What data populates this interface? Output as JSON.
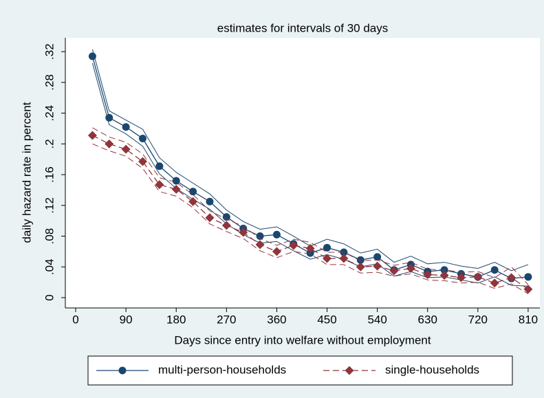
{
  "chart_data": {
    "type": "line",
    "title": "estimates for intervals of 30 days",
    "x_label": "Days since entry into welfare without employment",
    "y_label": "daily hazard rate in percent",
    "x": [
      30,
      60,
      90,
      120,
      150,
      180,
      210,
      240,
      270,
      300,
      330,
      360,
      390,
      420,
      450,
      480,
      510,
      540,
      570,
      600,
      630,
      660,
      690,
      720,
      750,
      780,
      810
    ],
    "series": [
      {
        "name": "multi-person-households",
        "color": "#1a476f",
        "marker": "circle",
        "dash": false,
        "values": [
          0.314,
          0.234,
          0.222,
          0.207,
          0.171,
          0.152,
          0.138,
          0.125,
          0.105,
          0.09,
          0.08,
          0.082,
          0.07,
          0.058,
          0.065,
          0.059,
          0.049,
          0.053,
          0.036,
          0.043,
          0.034,
          0.036,
          0.031,
          0.027,
          0.036,
          0.025,
          0.027
        ],
        "upper": [
          0.323,
          0.243,
          0.231,
          0.219,
          0.182,
          0.163,
          0.149,
          0.135,
          0.114,
          0.099,
          0.089,
          0.092,
          0.08,
          0.067,
          0.076,
          0.07,
          0.058,
          0.063,
          0.046,
          0.054,
          0.044,
          0.046,
          0.041,
          0.038,
          0.046,
          0.035,
          0.043
        ],
        "lower": [
          0.305,
          0.225,
          0.213,
          0.197,
          0.161,
          0.142,
          0.128,
          0.115,
          0.096,
          0.082,
          0.071,
          0.073,
          0.061,
          0.05,
          0.056,
          0.05,
          0.04,
          0.044,
          0.028,
          0.034,
          0.026,
          0.027,
          0.023,
          0.019,
          0.027,
          0.016,
          0.015
        ]
      },
      {
        "name": "single-households",
        "color": "#90353b",
        "marker": "diamond",
        "dash": true,
        "values": [
          0.211,
          0.2,
          0.193,
          0.177,
          0.147,
          0.141,
          0.125,
          0.104,
          0.094,
          0.085,
          0.069,
          0.06,
          0.068,
          0.064,
          0.051,
          0.051,
          0.04,
          0.041,
          0.035,
          0.038,
          0.03,
          0.029,
          0.026,
          0.027,
          0.019,
          0.026,
          0.011
        ],
        "upper": [
          0.221,
          0.209,
          0.202,
          0.187,
          0.156,
          0.15,
          0.134,
          0.113,
          0.102,
          0.093,
          0.077,
          0.068,
          0.076,
          0.072,
          0.059,
          0.059,
          0.048,
          0.049,
          0.042,
          0.046,
          0.037,
          0.036,
          0.033,
          0.034,
          0.026,
          0.04,
          0.017
        ],
        "lower": [
          0.2,
          0.191,
          0.184,
          0.168,
          0.138,
          0.132,
          0.117,
          0.096,
          0.086,
          0.077,
          0.061,
          0.052,
          0.06,
          0.057,
          0.043,
          0.043,
          0.032,
          0.033,
          0.028,
          0.031,
          0.023,
          0.022,
          0.019,
          0.02,
          0.012,
          0.018,
          0.005
        ]
      }
    ],
    "xlim": [
      -18.5,
      831
    ],
    "ylim": [
      -0.0134,
      0.338
    ],
    "xticks": [
      0,
      90,
      180,
      270,
      360,
      450,
      540,
      630,
      720,
      810
    ],
    "yticks": [
      0,
      {
        "value": 0.04,
        "label": ".04"
      },
      {
        "value": 0.08,
        "label": ".08"
      },
      {
        "value": 0.12,
        "label": ".12"
      },
      {
        "value": 0.16,
        "label": ".16"
      },
      {
        "value": 0.2,
        "label": ".2"
      },
      {
        "value": 0.24,
        "label": ".24"
      },
      {
        "value": 0.28,
        "label": ".28"
      },
      {
        "value": 0.32,
        "label": ".32"
      }
    ],
    "grid": false,
    "legend": "bottom"
  }
}
